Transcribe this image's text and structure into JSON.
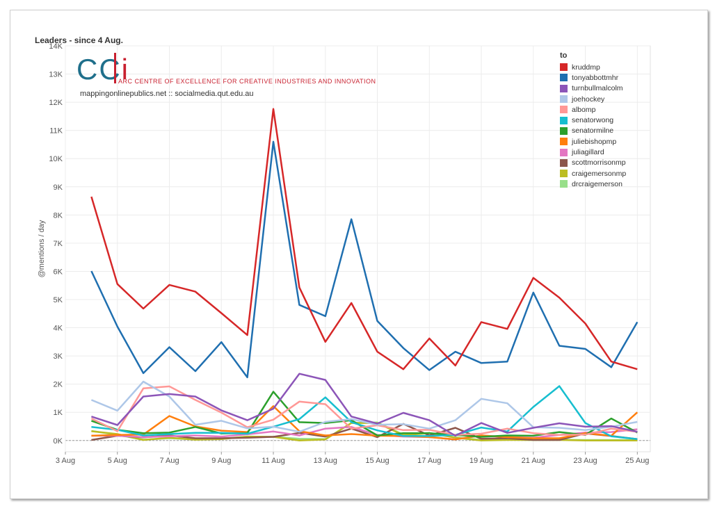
{
  "chart_data": {
    "type": "line",
    "title": "Leaders - since 4 Aug.",
    "ylabel": "@mentions / day",
    "xlabel": "",
    "ylim": [
      -400,
      14000
    ],
    "yticks": [
      0,
      1000,
      2000,
      3000,
      4000,
      5000,
      6000,
      7000,
      8000,
      9000,
      10000,
      11000,
      12000,
      13000,
      14000
    ],
    "ytick_labels": [
      "0K",
      "1K",
      "2K",
      "3K",
      "4K",
      "5K",
      "6K",
      "7K",
      "8K",
      "9K",
      "10K",
      "11K",
      "12K",
      "13K",
      "14K"
    ],
    "x_start_label": "3 Aug",
    "x_tick_labels": [
      "3 Aug",
      "5 Aug",
      "7 Aug",
      "9 Aug",
      "11 Aug",
      "13 Aug",
      "15 Aug",
      "17 Aug",
      "19 Aug",
      "21 Aug",
      "23 Aug",
      "25 Aug"
    ],
    "x_range_days": [
      3,
      25.5
    ],
    "x": [
      "4 Aug",
      "5 Aug",
      "6 Aug",
      "7 Aug",
      "8 Aug",
      "9 Aug",
      "10 Aug",
      "11 Aug",
      "12 Aug",
      "13 Aug",
      "14 Aug",
      "15 Aug",
      "16 Aug",
      "17 Aug",
      "18 Aug",
      "19 Aug",
      "20 Aug",
      "21 Aug",
      "22 Aug",
      "23 Aug",
      "24 Aug",
      "25 Aug"
    ],
    "legend_title": "to",
    "legend_position": "top-right",
    "grid": true,
    "series": [
      {
        "name": "kruddmp",
        "color": "#d62728",
        "values": [
          8650,
          5550,
          4680,
          5520,
          5280,
          4520,
          3740,
          11760,
          5430,
          3500,
          4880,
          3150,
          2530,
          3620,
          2660,
          4200,
          3960,
          5770,
          5070,
          4150,
          2800,
          2530
        ]
      },
      {
        "name": "tonyabbottmhr",
        "color": "#1f6fb0",
        "values": [
          6010,
          4040,
          2390,
          3310,
          2460,
          3490,
          2240,
          10600,
          4810,
          4410,
          7850,
          4240,
          3280,
          2500,
          3150,
          2750,
          2800,
          5250,
          3360,
          3250,
          2600,
          4200
        ]
      },
      {
        "name": "turnbullmalcolm",
        "color": "#8c55b8",
        "values": [
          850,
          550,
          1560,
          1650,
          1560,
          1070,
          720,
          1130,
          2370,
          2150,
          850,
          600,
          980,
          720,
          170,
          620,
          270,
          450,
          610,
          490,
          510,
          310
        ]
      },
      {
        "name": "joehockey",
        "color": "#aec7e8",
        "values": [
          1440,
          1060,
          2090,
          1560,
          560,
          700,
          430,
          490,
          310,
          660,
          760,
          560,
          580,
          420,
          720,
          1480,
          1320,
          470,
          450,
          370,
          490,
          660
        ]
      },
      {
        "name": "albomp",
        "color": "#ff9896",
        "values": [
          780,
          330,
          1850,
          1920,
          1440,
          990,
          470,
          740,
          1380,
          1290,
          420,
          540,
          370,
          380,
          200,
          240,
          420,
          260,
          200,
          210,
          420,
          310
        ]
      },
      {
        "name": "senatorwong",
        "color": "#17becf",
        "values": [
          480,
          380,
          180,
          230,
          270,
          270,
          240,
          490,
          760,
          1530,
          650,
          360,
          160,
          160,
          200,
          460,
          320,
          1190,
          1930,
          620,
          150,
          50
        ]
      },
      {
        "name": "senatormilne",
        "color": "#2ca02c",
        "values": [
          700,
          380,
          260,
          280,
          480,
          250,
          260,
          1730,
          650,
          620,
          720,
          180,
          260,
          260,
          200,
          130,
          180,
          170,
          300,
          200,
          780,
          280
        ]
      },
      {
        "name": "juliebishopmp",
        "color": "#ff7f0e",
        "values": [
          170,
          200,
          210,
          870,
          500,
          350,
          300,
          1220,
          330,
          180,
          230,
          170,
          160,
          120,
          40,
          180,
          120,
          80,
          80,
          260,
          170,
          1000
        ]
      },
      {
        "name": "juliagillard",
        "color": "#e377c2",
        "values": [
          170,
          170,
          120,
          150,
          180,
          140,
          220,
          320,
          180,
          420,
          480,
          200,
          140,
          120,
          40,
          180,
          120,
          100,
          200,
          280,
          300,
          400
        ]
      },
      {
        "name": "scottmorrisonmp",
        "color": "#8c564b",
        "values": [
          20,
          170,
          110,
          180,
          80,
          80,
          100,
          130,
          270,
          140,
          420,
          120,
          590,
          180,
          450,
          60,
          80,
          20,
          20,
          250,
          160,
          50
        ]
      },
      {
        "name": "craigemersonmp",
        "color": "#bcbd22",
        "values": [
          330,
          230,
          20,
          100,
          30,
          50,
          140,
          130,
          0,
          40,
          620,
          620,
          190,
          260,
          100,
          0,
          20,
          20,
          20,
          0,
          0,
          0
        ]
      },
      {
        "name": "drcraigemerson",
        "color": "#98df8a",
        "values": [
          340,
          200,
          30,
          80,
          40,
          60,
          140,
          130,
          60,
          50,
          620,
          640,
          210,
          270,
          110,
          20,
          30,
          20,
          30,
          20,
          20,
          20
        ]
      }
    ]
  },
  "logo": {
    "mark_letters": "CC",
    "mark_i": "i",
    "tagline": "ARC CENTRE OF EXCELLENCE FOR CREATIVE INDUSTRIES AND INNOVATION",
    "url": "mappingonlinepublics.net :: socialmedia.qut.edu.au"
  }
}
